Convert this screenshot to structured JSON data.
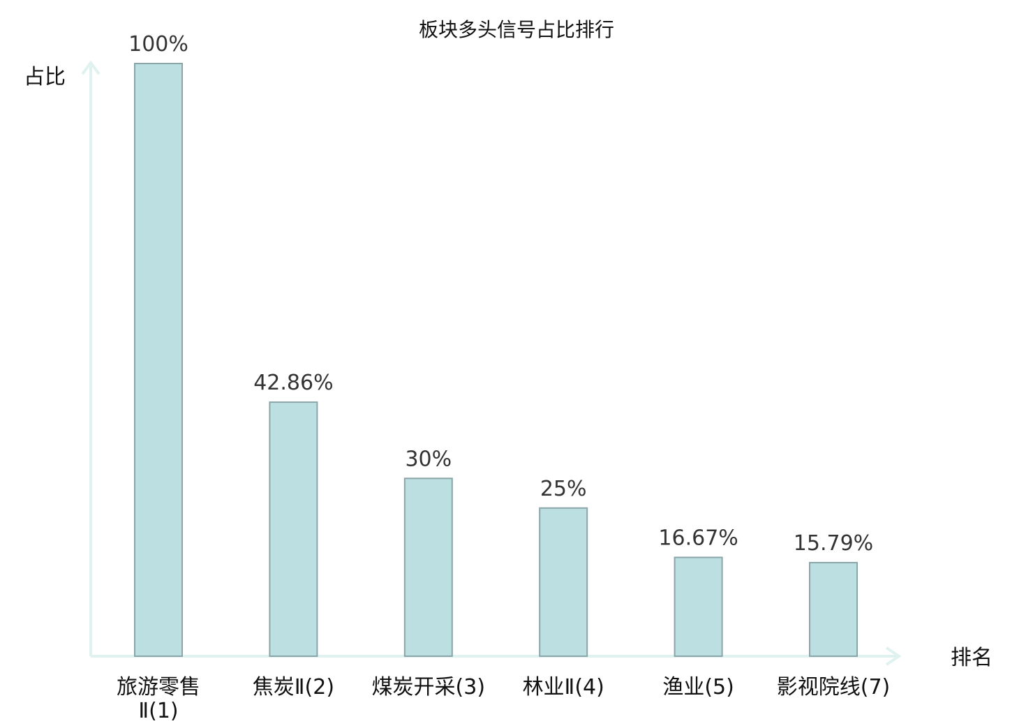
{
  "chart_data": {
    "type": "bar",
    "title": "板块多头信号占比排行",
    "ylabel": "占比",
    "xlabel": "排名",
    "ylim": [
      0,
      100
    ],
    "grid": false,
    "legend": "none",
    "categories": [
      [
        "旅游零售",
        "Ⅱ(1)"
      ],
      [
        "焦炭Ⅱ(2)"
      ],
      [
        "煤炭开采(3)"
      ],
      [
        "林业Ⅱ(4)"
      ],
      [
        "渔业(5)"
      ],
      [
        "影视院线(7)"
      ]
    ],
    "category_colors": [
      "#111111",
      "#111111",
      "#111111",
      "#111111",
      "#111111",
      "#dd0000"
    ],
    "values": [
      100,
      42.86,
      30,
      25,
      16.67,
      15.79
    ],
    "value_labels": [
      "100%",
      "42.86%",
      "30%",
      "25%",
      "16.67%",
      "15.79%"
    ],
    "colors": {
      "bar_fill": "#bce0e2",
      "bar_stroke": "#8aa5a7",
      "axis": "#dff2ef",
      "highlight": "#dd0000"
    }
  }
}
